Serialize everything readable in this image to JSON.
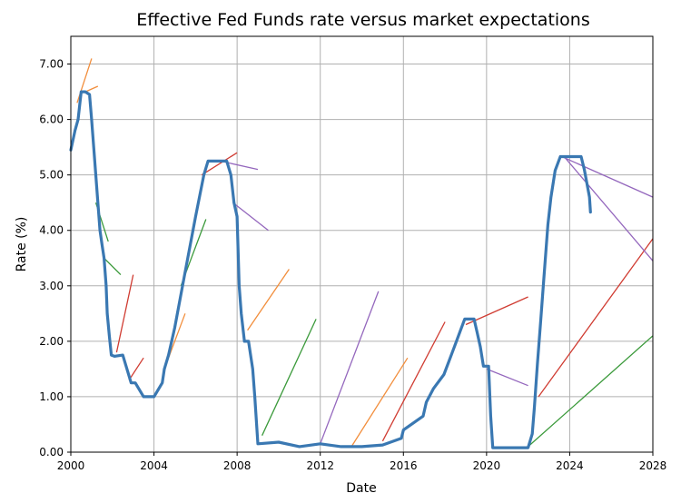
{
  "chart_data": {
    "type": "line",
    "title": "Effective Fed Funds rate versus market expectations",
    "xlabel": "Date",
    "ylabel": "Rate (%)",
    "xlim": [
      2000,
      2028
    ],
    "ylim": [
      0,
      7.5
    ],
    "x_ticks": [
      2000,
      2004,
      2008,
      2012,
      2016,
      2020,
      2024,
      2028
    ],
    "y_ticks": [
      0,
      1,
      2,
      3,
      4,
      5,
      6,
      7
    ],
    "y_tick_format": "2dp",
    "grid": true,
    "colors": {
      "effective": "#3a78b2",
      "forecast_2000s": "#f28e3c",
      "forecast_green": "#3b9a3b",
      "forecast_red": "#d03c32",
      "forecast_purple": "#9467bd"
    },
    "series": [
      {
        "role": "effective",
        "color": "#3a78b2",
        "x": [
          2000.0,
          2000.2,
          2000.35,
          2000.5,
          2000.7,
          2000.9,
          2001.0,
          2001.1,
          2001.2,
          2001.3,
          2001.4,
          2001.5,
          2001.6,
          2001.7,
          2001.75,
          2001.85,
          2001.95,
          2002.1,
          2002.5,
          2002.9,
          2003.1,
          2003.5,
          2003.8,
          2004.0,
          2004.4,
          2004.5,
          2004.7,
          2005.0,
          2005.5,
          2006.0,
          2006.4,
          2006.6,
          2007.0,
          2007.5,
          2007.7,
          2007.85,
          2008.0,
          2008.1,
          2008.2,
          2008.35,
          2008.55,
          2008.75,
          2008.85,
          2009.0,
          2010.0,
          2011.0,
          2012.0,
          2013.0,
          2014.0,
          2015.0,
          2015.9,
          2016.0,
          2016.95,
          2017.1,
          2017.45,
          2017.95,
          2018.2,
          2018.45,
          2018.7,
          2018.95,
          2019.4,
          2019.55,
          2019.7,
          2019.85,
          2020.1,
          2020.2,
          2020.3,
          2021.0,
          2022.0,
          2022.2,
          2022.3,
          2022.45,
          2022.6,
          2022.75,
          2022.95,
          2023.1,
          2023.3,
          2023.55,
          2024.0,
          2024.55,
          2024.7,
          2024.95,
          2025.0
        ],
        "values": [
          5.45,
          5.8,
          6.0,
          6.5,
          6.5,
          6.45,
          6.0,
          5.5,
          5.0,
          4.5,
          4.0,
          3.75,
          3.5,
          3.0,
          2.5,
          2.1,
          1.75,
          1.73,
          1.75,
          1.25,
          1.25,
          1.0,
          1.0,
          1.0,
          1.25,
          1.5,
          1.75,
          2.25,
          3.25,
          4.25,
          5.0,
          5.25,
          5.25,
          5.25,
          5.0,
          4.5,
          4.25,
          3.0,
          2.5,
          2.0,
          2.0,
          1.5,
          1.0,
          0.15,
          0.18,
          0.1,
          0.15,
          0.1,
          0.1,
          0.13,
          0.25,
          0.4,
          0.65,
          0.9,
          1.15,
          1.4,
          1.65,
          1.9,
          2.15,
          2.4,
          2.4,
          2.15,
          1.9,
          1.55,
          1.55,
          0.65,
          0.08,
          0.08,
          0.08,
          0.33,
          0.8,
          1.6,
          2.35,
          3.1,
          4.1,
          4.6,
          5.08,
          5.33,
          5.33,
          5.33,
          5.1,
          4.6,
          4.33
        ]
      },
      {
        "role": "expectation",
        "color": "#f28e3c",
        "x": [
          2000.3,
          2001.0
        ],
        "values": [
          6.3,
          7.1
        ]
      },
      {
        "role": "expectation",
        "color": "#f28e3c",
        "x": [
          2000.7,
          2001.3
        ],
        "values": [
          6.5,
          6.6
        ]
      },
      {
        "role": "expectation",
        "color": "#3b9a3b",
        "x": [
          2001.2,
          2001.8
        ],
        "values": [
          4.5,
          3.8
        ]
      },
      {
        "role": "expectation",
        "color": "#3b9a3b",
        "x": [
          2001.6,
          2002.4
        ],
        "values": [
          3.5,
          3.2
        ]
      },
      {
        "role": "expectation",
        "color": "#d03c32",
        "x": [
          2002.2,
          2003.0
        ],
        "values": [
          1.8,
          3.2
        ]
      },
      {
        "role": "expectation",
        "color": "#d03c32",
        "x": [
          2002.8,
          2003.5
        ],
        "values": [
          1.3,
          1.7
        ]
      },
      {
        "role": "expectation",
        "color": "#f28e3c",
        "x": [
          2004.5,
          2005.5
        ],
        "values": [
          1.5,
          2.5
        ]
      },
      {
        "role": "expectation",
        "color": "#3b9a3b",
        "x": [
          2005.3,
          2006.5
        ],
        "values": [
          3.0,
          4.2
        ]
      },
      {
        "role": "expectation",
        "color": "#d03c32",
        "x": [
          2006.3,
          2008.0
        ],
        "values": [
          5.0,
          5.4
        ]
      },
      {
        "role": "expectation",
        "color": "#9467bd",
        "x": [
          2007.2,
          2009.0
        ],
        "values": [
          5.25,
          5.1
        ]
      },
      {
        "role": "expectation",
        "color": "#9467bd",
        "x": [
          2007.8,
          2009.5
        ],
        "values": [
          4.5,
          4.0
        ]
      },
      {
        "role": "expectation",
        "color": "#f28e3c",
        "x": [
          2008.5,
          2010.5
        ],
        "values": [
          2.2,
          3.3
        ]
      },
      {
        "role": "expectation",
        "color": "#3b9a3b",
        "x": [
          2009.2,
          2011.8
        ],
        "values": [
          0.3,
          2.4
        ]
      },
      {
        "role": "expectation",
        "color": "#9467bd",
        "x": [
          2012.0,
          2014.8
        ],
        "values": [
          0.15,
          2.9
        ]
      },
      {
        "role": "expectation",
        "color": "#f28e3c",
        "x": [
          2013.5,
          2016.2
        ],
        "values": [
          0.1,
          1.7
        ]
      },
      {
        "role": "expectation",
        "color": "#d03c32",
        "x": [
          2015.0,
          2018.0
        ],
        "values": [
          0.2,
          2.35
        ]
      },
      {
        "role": "expectation",
        "color": "#d03c32",
        "x": [
          2019.0,
          2022.0
        ],
        "values": [
          2.3,
          2.8
        ]
      },
      {
        "role": "expectation",
        "color": "#9467bd",
        "x": [
          2020.0,
          2022.0
        ],
        "values": [
          1.5,
          1.2
        ]
      },
      {
        "role": "expectation",
        "color": "#3b9a3b",
        "x": [
          2022.0,
          2028.0
        ],
        "values": [
          0.1,
          2.1
        ]
      },
      {
        "role": "expectation",
        "color": "#d03c32",
        "x": [
          2022.5,
          2028.0
        ],
        "values": [
          1.0,
          3.85
        ]
      },
      {
        "role": "expectation",
        "color": "#9467bd",
        "x": [
          2023.5,
          2028.0
        ],
        "values": [
          5.35,
          4.6
        ]
      },
      {
        "role": "expectation",
        "color": "#9467bd",
        "x": [
          2023.8,
          2028.0
        ],
        "values": [
          5.3,
          3.45
        ]
      }
    ]
  }
}
